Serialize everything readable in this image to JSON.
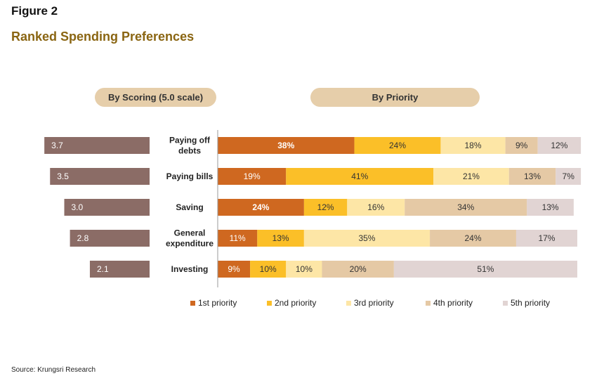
{
  "figure_label": "Figure 2",
  "title": "Ranked Spending Preferences",
  "pills": {
    "scoring": "By Scoring (5.0 scale)",
    "priority": "By Priority"
  },
  "source": "Source: Krungsri Research",
  "colors": {
    "score_bar": "#8b6c66",
    "p1": "#cf6820",
    "p2": "#fbbf28",
    "p3": "#fde6a6",
    "p4": "#e5c9a5",
    "p5": "#e1d4d3",
    "pill": "#e6ceaa",
    "title": "#8a6512"
  },
  "chart_data": [
    {
      "type": "bar",
      "orientation": "horizontal",
      "title": "By Scoring (5.0 scale)",
      "categories": [
        "Paying off debts",
        "Paying bills",
        "Saving",
        "General expenditure",
        "Investing"
      ],
      "values": [
        3.7,
        3.5,
        3.0,
        2.8,
        2.1
      ],
      "xlim": [
        0,
        5
      ],
      "direction": "right-to-left"
    },
    {
      "type": "bar",
      "orientation": "horizontal",
      "stacked": "percent",
      "title": "By Priority",
      "categories": [
        "Paying off debts",
        "Paying bills",
        "Saving",
        "General expenditure",
        "Investing"
      ],
      "category_lines": [
        [
          "Paying off",
          "debts"
        ],
        [
          "Paying bills"
        ],
        [
          "Saving"
        ],
        [
          "General",
          "expenditure"
        ],
        [
          "Investing"
        ]
      ],
      "series": [
        {
          "name": "1st priority",
          "values": [
            38,
            19,
            24,
            11,
            9
          ]
        },
        {
          "name": "2nd priority",
          "values": [
            24,
            41,
            12,
            13,
            10
          ]
        },
        {
          "name": "3rd priority",
          "values": [
            18,
            21,
            16,
            35,
            10
          ]
        },
        {
          "name": "4th priority",
          "values": [
            9,
            13,
            34,
            24,
            20
          ]
        },
        {
          "name": "5th priority",
          "values": [
            12,
            7,
            13,
            17,
            51
          ]
        }
      ],
      "bold_labels": [
        [
          true,
          false,
          false,
          false,
          false
        ],
        [
          false,
          false,
          false,
          false,
          false
        ],
        [
          true,
          false,
          false,
          false,
          false
        ],
        [
          false,
          false,
          false,
          false,
          false
        ],
        [
          false,
          false,
          false,
          false,
          false
        ]
      ],
      "legend_position": "bottom",
      "grid": false
    }
  ]
}
